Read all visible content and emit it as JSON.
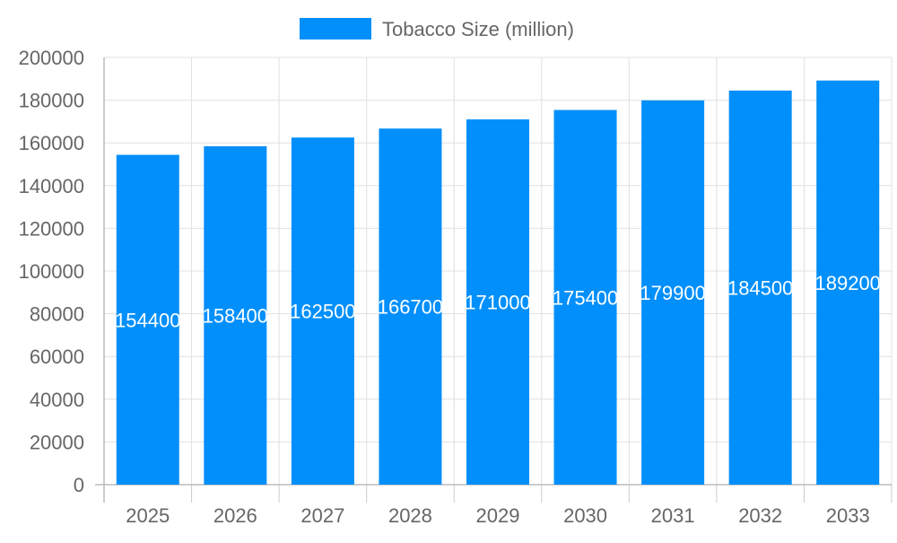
{
  "chart_data": {
    "type": "bar",
    "categories": [
      "2025",
      "2026",
      "2027",
      "2028",
      "2029",
      "2030",
      "2031",
      "2032",
      "2033"
    ],
    "series": [
      {
        "name": "Tobacco Size (million)",
        "values": [
          154400,
          158400,
          162500,
          166700,
          171000,
          175400,
          179900,
          184500,
          189200
        ],
        "color": "#018ffb"
      }
    ],
    "ylim": [
      0,
      200000
    ],
    "yticks": [
      0,
      20000,
      40000,
      60000,
      80000,
      100000,
      120000,
      140000,
      160000,
      180000,
      200000
    ],
    "grid": true,
    "legend": "top",
    "data_labels": true
  }
}
